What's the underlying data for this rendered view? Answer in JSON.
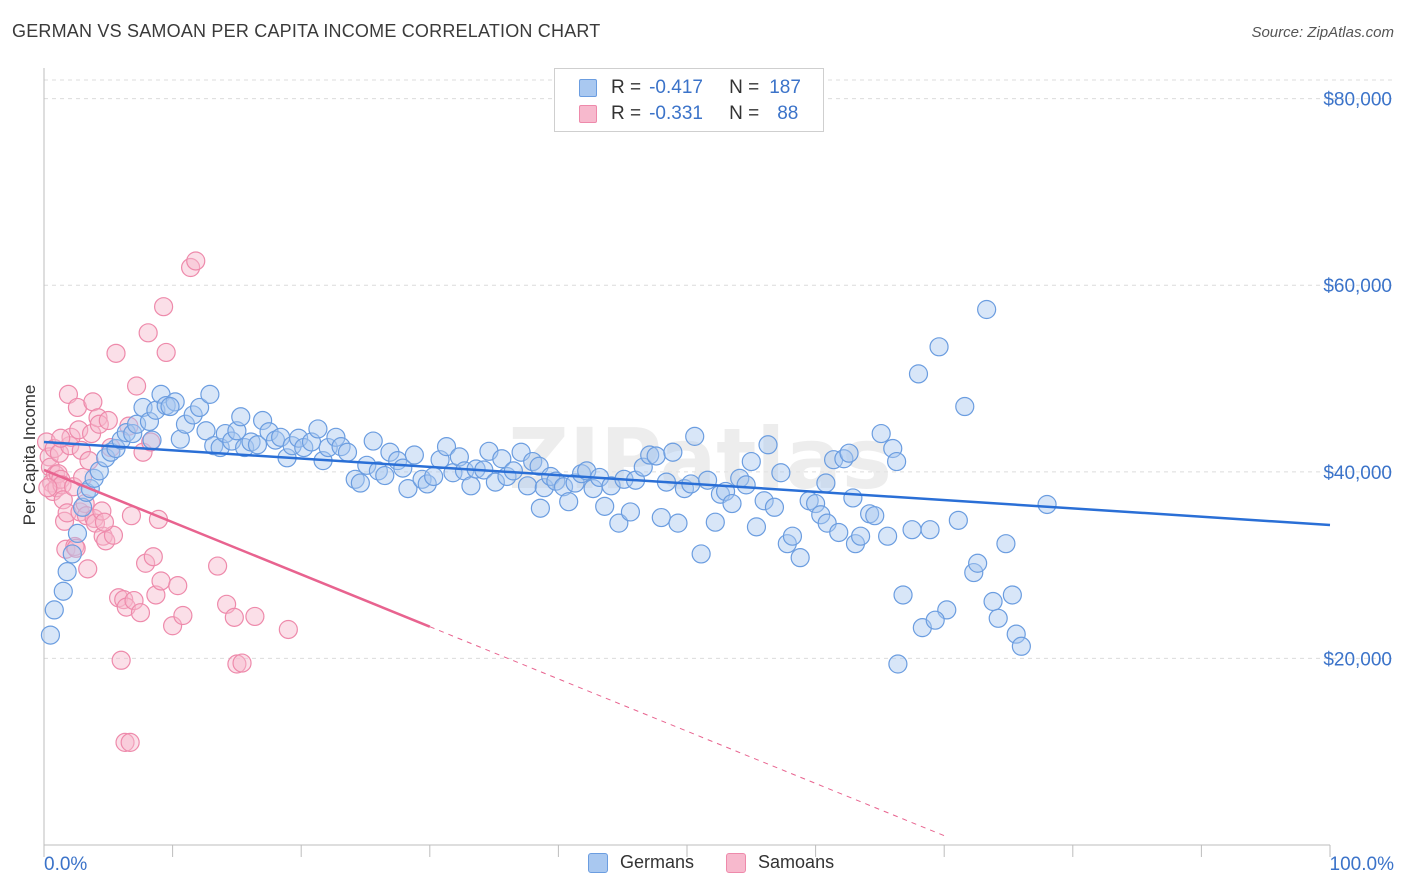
{
  "title": "GERMAN VS SAMOAN PER CAPITA INCOME CORRELATION CHART",
  "source": "Source: ZipAtlas.com",
  "watermark": "ZIPatlas",
  "legend": {
    "rows": [
      {
        "r_label": "R =",
        "r_value": "-0.417",
        "n_label": "N =",
        "n_value": "187"
      },
      {
        "r_label": "R =",
        "r_value": "-0.331",
        "n_label": "N =",
        "n_value": "88"
      }
    ]
  },
  "bottom_legend": [
    "Germans",
    "Samoans"
  ],
  "colors": {
    "germans_fill": "#a9c8f0",
    "germans_stroke": "#6b9de0",
    "germans_line": "#2a6fd6",
    "samoans_fill": "#f7b9cd",
    "samoans_stroke": "#ee8aab",
    "samoans_line": "#e8638f",
    "value_blue": "#3b73c9",
    "grid": "#dcdcdc"
  },
  "chart_data": {
    "type": "scatter",
    "title": "GERMAN VS SAMOAN PER CAPITA INCOME CORRELATION CHART",
    "xlabel": "",
    "ylabel": "Per Capita Income",
    "x_tick_labels": [
      "0.0%",
      "100.0%"
    ],
    "y_tick_labels": [
      "$20,000",
      "$40,000",
      "$60,000",
      "$80,000"
    ],
    "y_ticks": [
      20000,
      40000,
      60000,
      80000
    ],
    "xlim": [
      0,
      100
    ],
    "ylim": [
      0,
      82000
    ],
    "grid": true,
    "legend_position": "top-center",
    "series": [
      {
        "name": "Germans",
        "r": -0.417,
        "n": 187,
        "trend": {
          "x": [
            0,
            100
          ],
          "y": [
            43200,
            34300
          ]
        },
        "points": [
          [
            0.5,
            22500
          ],
          [
            0.8,
            25200
          ],
          [
            1.5,
            27200
          ],
          [
            1.8,
            29300
          ],
          [
            2.2,
            31200
          ],
          [
            2.6,
            33400
          ],
          [
            3.0,
            36200
          ],
          [
            3.3,
            37800
          ],
          [
            3.6,
            38200
          ],
          [
            3.9,
            39300
          ],
          [
            4.3,
            40100
          ],
          [
            4.8,
            41500
          ],
          [
            5.2,
            42100
          ],
          [
            5.6,
            42500
          ],
          [
            6.0,
            43400
          ],
          [
            6.4,
            44200
          ],
          [
            6.9,
            44100
          ],
          [
            7.2,
            45100
          ],
          [
            7.7,
            46900
          ],
          [
            8.2,
            45400
          ],
          [
            8.7,
            46600
          ],
          [
            9.1,
            48300
          ],
          [
            9.5,
            47100
          ],
          [
            10.2,
            47500
          ],
          [
            10.6,
            43500
          ],
          [
            11.0,
            45100
          ],
          [
            11.6,
            46100
          ],
          [
            12.1,
            46900
          ],
          [
            12.6,
            44400
          ],
          [
            13.2,
            42800
          ],
          [
            13.7,
            42600
          ],
          [
            14.1,
            44100
          ],
          [
            14.6,
            43300
          ],
          [
            15.0,
            44400
          ],
          [
            15.6,
            42600
          ],
          [
            16.1,
            43200
          ],
          [
            16.6,
            42900
          ],
          [
            17.0,
            45500
          ],
          [
            17.5,
            44300
          ],
          [
            18.0,
            43400
          ],
          [
            18.4,
            43700
          ],
          [
            18.9,
            41500
          ],
          [
            19.3,
            42800
          ],
          [
            19.8,
            43600
          ],
          [
            20.2,
            42600
          ],
          [
            20.8,
            43200
          ],
          [
            21.3,
            44600
          ],
          [
            21.7,
            41200
          ],
          [
            22.1,
            42600
          ],
          [
            22.7,
            43700
          ],
          [
            23.1,
            42700
          ],
          [
            23.6,
            42100
          ],
          [
            24.2,
            39200
          ],
          [
            24.6,
            38800
          ],
          [
            25.1,
            40700
          ],
          [
            25.6,
            43300
          ],
          [
            26.0,
            40100
          ],
          [
            26.5,
            39600
          ],
          [
            26.9,
            42100
          ],
          [
            27.5,
            41200
          ],
          [
            27.9,
            40400
          ],
          [
            28.3,
            38200
          ],
          [
            28.8,
            41800
          ],
          [
            29.4,
            39200
          ],
          [
            29.8,
            38700
          ],
          [
            30.3,
            39500
          ],
          [
            30.8,
            41300
          ],
          [
            31.3,
            42700
          ],
          [
            31.8,
            39900
          ],
          [
            32.3,
            41600
          ],
          [
            32.7,
            40100
          ],
          [
            33.2,
            38500
          ],
          [
            33.6,
            40300
          ],
          [
            34.2,
            40200
          ],
          [
            34.6,
            42200
          ],
          [
            35.1,
            38900
          ],
          [
            35.6,
            41400
          ],
          [
            36.0,
            39500
          ],
          [
            36.5,
            40100
          ],
          [
            37.1,
            42100
          ],
          [
            37.6,
            38500
          ],
          [
            38.0,
            41100
          ],
          [
            38.5,
            40600
          ],
          [
            38.9,
            38300
          ],
          [
            39.4,
            39500
          ],
          [
            39.8,
            39000
          ],
          [
            40.4,
            38400
          ],
          [
            40.8,
            36800
          ],
          [
            41.3,
            38800
          ],
          [
            41.8,
            39800
          ],
          [
            42.2,
            40100
          ],
          [
            42.7,
            38200
          ],
          [
            43.2,
            39400
          ],
          [
            43.6,
            36300
          ],
          [
            44.1,
            38500
          ],
          [
            44.7,
            34500
          ],
          [
            45.1,
            39200
          ],
          [
            45.6,
            35700
          ],
          [
            46.0,
            39100
          ],
          [
            46.6,
            40500
          ],
          [
            47.1,
            41800
          ],
          [
            47.6,
            41700
          ],
          [
            48.0,
            35100
          ],
          [
            48.4,
            38900
          ],
          [
            48.9,
            42100
          ],
          [
            49.3,
            34500
          ],
          [
            49.8,
            38200
          ],
          [
            50.3,
            38700
          ],
          [
            50.6,
            43800
          ],
          [
            51.1,
            31200
          ],
          [
            51.6,
            39100
          ],
          [
            52.2,
            34600
          ],
          [
            52.6,
            37600
          ],
          [
            53.0,
            37900
          ],
          [
            53.5,
            36600
          ],
          [
            54.1,
            39300
          ],
          [
            54.6,
            38600
          ],
          [
            55.0,
            41100
          ],
          [
            55.4,
            34100
          ],
          [
            56.0,
            36900
          ],
          [
            56.3,
            42900
          ],
          [
            56.8,
            36200
          ],
          [
            57.3,
            39900
          ],
          [
            57.8,
            32300
          ],
          [
            58.2,
            33100
          ],
          [
            58.8,
            30800
          ],
          [
            59.5,
            36900
          ],
          [
            60.0,
            36600
          ],
          [
            60.4,
            35400
          ],
          [
            60.9,
            34500
          ],
          [
            61.4,
            41300
          ],
          [
            61.8,
            33500
          ],
          [
            62.2,
            41400
          ],
          [
            62.6,
            42000
          ],
          [
            63.1,
            32300
          ],
          [
            63.5,
            33100
          ],
          [
            64.2,
            35500
          ],
          [
            64.6,
            35300
          ],
          [
            65.1,
            44100
          ],
          [
            65.6,
            33100
          ],
          [
            66.0,
            42500
          ],
          [
            66.3,
            41100
          ],
          [
            66.8,
            26800
          ],
          [
            67.5,
            33800
          ],
          [
            68.0,
            50500
          ],
          [
            68.3,
            23300
          ],
          [
            68.9,
            33800
          ],
          [
            69.6,
            53400
          ],
          [
            70.2,
            25200
          ],
          [
            71.1,
            34800
          ],
          [
            71.6,
            47000
          ],
          [
            72.3,
            29200
          ],
          [
            72.6,
            30200
          ],
          [
            73.3,
            57400
          ],
          [
            73.8,
            26100
          ],
          [
            74.2,
            24300
          ],
          [
            74.8,
            32300
          ],
          [
            75.3,
            26800
          ],
          [
            75.6,
            22600
          ],
          [
            76.0,
            21300
          ],
          [
            78.0,
            36500
          ],
          [
            66.4,
            19400
          ],
          [
            69.3,
            24100
          ],
          [
            60.8,
            38800
          ],
          [
            62.9,
            37200
          ],
          [
            38.6,
            36100
          ],
          [
            15.3,
            45900
          ],
          [
            12.9,
            48300
          ],
          [
            9.8,
            47000
          ],
          [
            8.4,
            43400
          ]
        ]
      },
      {
        "name": "Samoans",
        "r": -0.331,
        "n": 88,
        "trend": {
          "x": [
            0,
            30
          ],
          "y": [
            40200,
            23400
          ]
        },
        "trend_dashed": {
          "x": [
            30,
            70
          ],
          "y": [
            23400,
            1000
          ]
        },
        "points": [
          [
            0.2,
            43200
          ],
          [
            0.4,
            41600
          ],
          [
            0.5,
            40500
          ],
          [
            0.6,
            38800
          ],
          [
            0.7,
            37900
          ],
          [
            0.8,
            42500
          ],
          [
            0.9,
            39700
          ],
          [
            1.0,
            38300
          ],
          [
            1.1,
            39800
          ],
          [
            1.2,
            42000
          ],
          [
            1.3,
            39200
          ],
          [
            1.4,
            38600
          ],
          [
            1.5,
            37000
          ],
          [
            1.6,
            34700
          ],
          [
            1.7,
            31700
          ],
          [
            1.8,
            35600
          ],
          [
            1.9,
            48300
          ],
          [
            2.0,
            42800
          ],
          [
            2.1,
            43700
          ],
          [
            2.3,
            38400
          ],
          [
            2.4,
            32000
          ],
          [
            2.5,
            31800
          ],
          [
            2.6,
            46900
          ],
          [
            2.7,
            44500
          ],
          [
            2.8,
            35700
          ],
          [
            2.9,
            42300
          ],
          [
            3.0,
            39400
          ],
          [
            3.2,
            36600
          ],
          [
            3.3,
            35300
          ],
          [
            3.4,
            29600
          ],
          [
            3.5,
            41200
          ],
          [
            3.7,
            44100
          ],
          [
            3.8,
            47500
          ],
          [
            3.9,
            35000
          ],
          [
            4.0,
            34500
          ],
          [
            4.2,
            45800
          ],
          [
            4.3,
            45100
          ],
          [
            4.5,
            35800
          ],
          [
            4.6,
            33100
          ],
          [
            4.8,
            32600
          ],
          [
            5.0,
            45500
          ],
          [
            5.2,
            42600
          ],
          [
            5.4,
            33200
          ],
          [
            5.6,
            52700
          ],
          [
            5.8,
            26500
          ],
          [
            6.0,
            19800
          ],
          [
            6.2,
            26300
          ],
          [
            6.4,
            25500
          ],
          [
            6.6,
            44900
          ],
          [
            6.8,
            35300
          ],
          [
            7.0,
            26200
          ],
          [
            7.2,
            49200
          ],
          [
            7.5,
            24900
          ],
          [
            7.7,
            42100
          ],
          [
            7.9,
            30200
          ],
          [
            8.1,
            54900
          ],
          [
            8.3,
            43200
          ],
          [
            8.5,
            30900
          ],
          [
            8.7,
            26800
          ],
          [
            8.9,
            34900
          ],
          [
            9.1,
            28300
          ],
          [
            9.3,
            57700
          ],
          [
            9.5,
            52800
          ],
          [
            10.0,
            23500
          ],
          [
            10.4,
            27800
          ],
          [
            10.8,
            24600
          ],
          [
            11.4,
            61900
          ],
          [
            11.8,
            62600
          ],
          [
            13.5,
            29900
          ],
          [
            14.2,
            25800
          ],
          [
            14.8,
            24400
          ],
          [
            15.0,
            19400
          ],
          [
            15.4,
            19500
          ],
          [
            16.4,
            24500
          ],
          [
            19.0,
            23100
          ],
          [
            6.3,
            11000
          ],
          [
            6.7,
            11000
          ],
          [
            4.7,
            34600
          ],
          [
            1.3,
            43600
          ],
          [
            0.3,
            38300
          ]
        ]
      }
    ]
  }
}
